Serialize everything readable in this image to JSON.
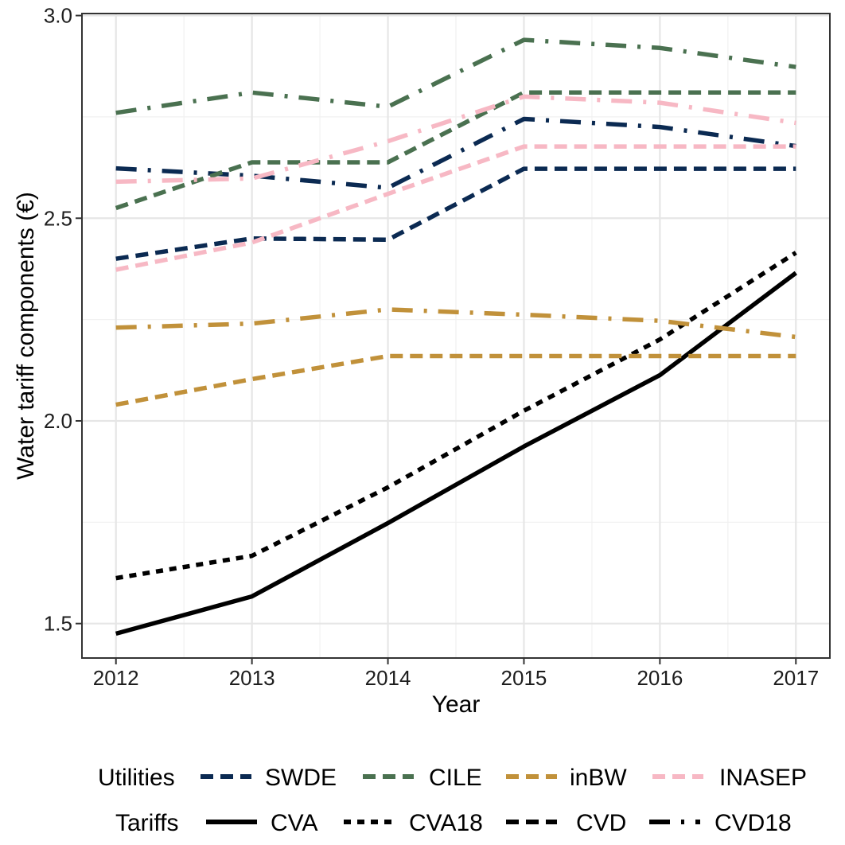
{
  "chart_data": {
    "type": "line",
    "xlabel": "Year",
    "ylabel": "Water tariff components (€)",
    "x": [
      2012,
      2013,
      2014,
      2015,
      2016,
      2017
    ],
    "xlim": [
      2011.75,
      2017.25
    ],
    "ylim": [
      1.415,
      3.005
    ],
    "yticks": [
      1.5,
      2.0,
      2.5,
      3.0
    ],
    "ytick_labels": [
      "1.5",
      "2.0",
      "2.5",
      "3.0"
    ],
    "xtick_labels": [
      "2012",
      "2013",
      "2014",
      "2015",
      "2016",
      "2017"
    ],
    "grid": true,
    "legend_position": "bottom",
    "colors": {
      "SWDE": "#0b2a52",
      "CILE": "#4a7150",
      "inBW": "#c1913a",
      "INASEP": "#f7b8c4",
      "black": "#000000"
    },
    "legend": {
      "utilities_title": "Utilities",
      "utilities": [
        "SWDE",
        "CILE",
        "inBW",
        "INASEP"
      ],
      "tariffs_title": "Tariffs",
      "tariffs": [
        "CVA",
        "CVA18",
        "CVD",
        "CVD18"
      ]
    },
    "series": [
      {
        "name": "CVA",
        "tariff": "CVA",
        "utility": null,
        "values": [
          1.475,
          1.567,
          1.748,
          1.937,
          2.113,
          2.365
        ]
      },
      {
        "name": "CVA18",
        "tariff": "CVA18",
        "utility": null,
        "values": [
          1.612,
          1.667,
          1.836,
          2.025,
          2.201,
          2.415
        ]
      },
      {
        "name": "SWDE CVD",
        "tariff": "CVD",
        "utility": "SWDE",
        "values": [
          2.4,
          2.45,
          2.447,
          2.622,
          2.622,
          2.622
        ]
      },
      {
        "name": "SWDE CVD18",
        "tariff": "CVD18",
        "utility": "SWDE",
        "values": [
          2.623,
          2.605,
          2.575,
          2.745,
          2.725,
          2.678
        ]
      },
      {
        "name": "CILE CVD",
        "tariff": "CVD",
        "utility": "CILE",
        "values": [
          2.525,
          2.638,
          2.638,
          2.81,
          2.81,
          2.81
        ]
      },
      {
        "name": "CILE CVD18",
        "tariff": "CVD18",
        "utility": "CILE",
        "values": [
          2.76,
          2.81,
          2.775,
          2.94,
          2.92,
          2.873
        ]
      },
      {
        "name": "inBW CVD",
        "tariff": "CVD",
        "utility": "inBW",
        "values": [
          2.04,
          2.103,
          2.16,
          2.16,
          2.16,
          2.16
        ]
      },
      {
        "name": "inBW CVD18",
        "tariff": "CVD18",
        "utility": "inBW",
        "values": [
          2.23,
          2.24,
          2.275,
          2.262,
          2.247,
          2.207
        ]
      },
      {
        "name": "INASEP CVD",
        "tariff": "CVD",
        "utility": "INASEP",
        "values": [
          2.373,
          2.44,
          2.56,
          2.677,
          2.677,
          2.677
        ]
      },
      {
        "name": "INASEP CVD18",
        "tariff": "CVD18",
        "utility": "INASEP",
        "values": [
          2.59,
          2.598,
          2.69,
          2.8,
          2.785,
          2.735
        ]
      }
    ]
  }
}
